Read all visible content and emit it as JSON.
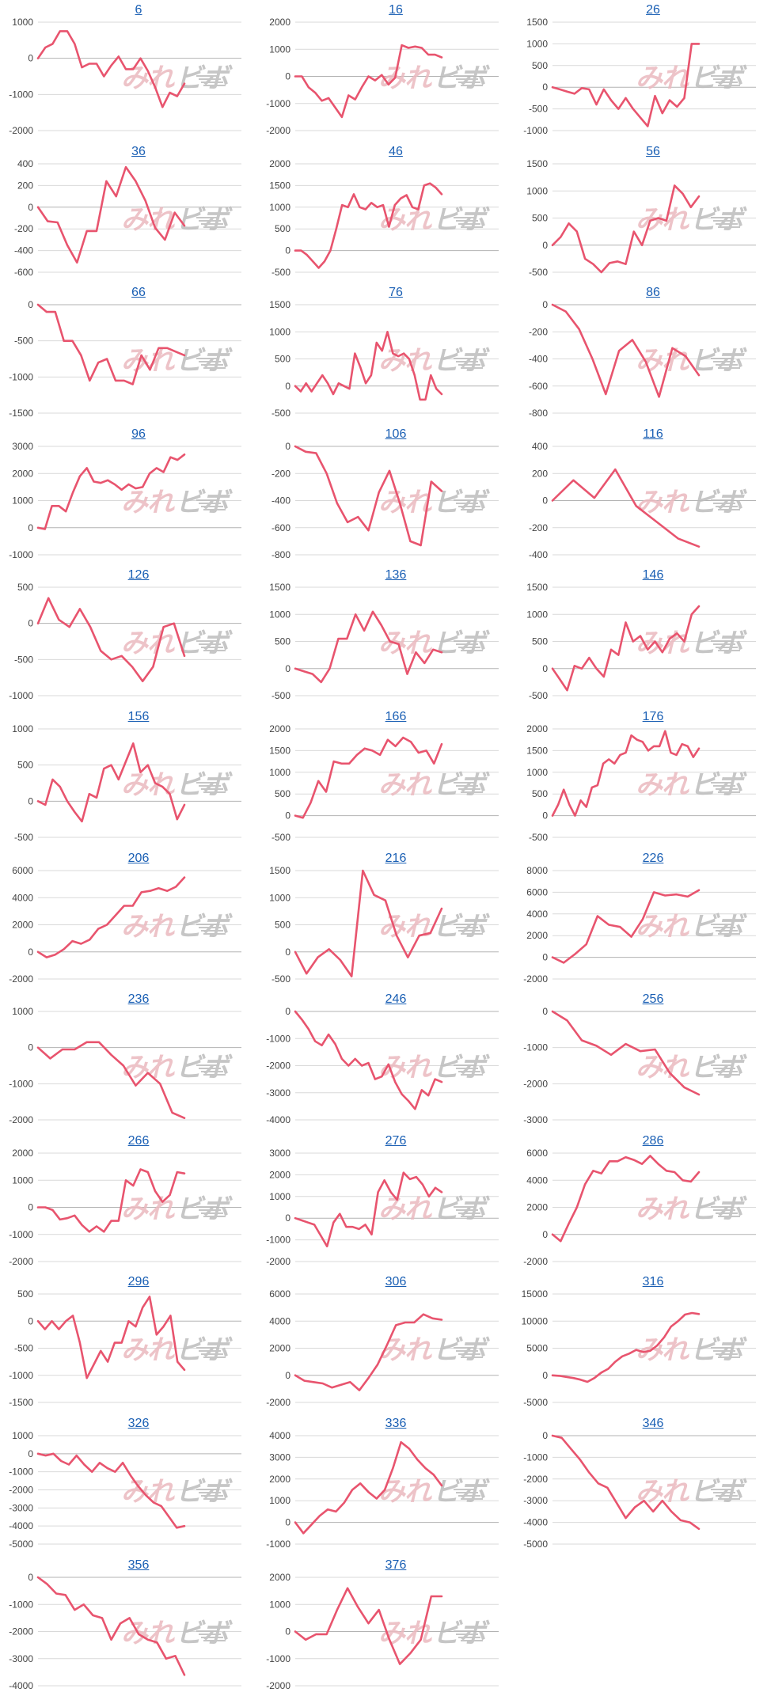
{
  "line_color": "#e8546e",
  "grid_color": "#d9d9d9",
  "zero_line_color": "#b3b3b3",
  "link_color": "#1a5fb4",
  "watermark_fill": "#ebb9bf",
  "watermark_fill_2": "#bdbdbd",
  "chart_data": [
    {
      "type": "line",
      "title": "6",
      "yticks": [
        1000,
        0,
        -1000,
        -2000
      ],
      "ylim": [
        -2000,
        1000
      ],
      "values": [
        0,
        300,
        400,
        750,
        750,
        400,
        -250,
        -150,
        -150,
        -500,
        -200,
        50,
        -300,
        -300,
        0,
        -350,
        -800,
        -1350,
        -950,
        -1050,
        -700
      ]
    },
    {
      "type": "line",
      "title": "16",
      "yticks": [
        2000,
        1000,
        0,
        -1000,
        -2000
      ],
      "ylim": [
        -2000,
        2000
      ],
      "values": [
        0,
        0,
        -400,
        -600,
        -900,
        -800,
        -1150,
        -1500,
        -700,
        -850,
        -400,
        0,
        -150,
        50,
        -300,
        -50,
        1150,
        1050,
        1100,
        1050,
        800,
        800,
        700
      ]
    },
    {
      "type": "line",
      "title": "26",
      "yticks": [
        1500,
        1000,
        500,
        0,
        -500,
        -1000
      ],
      "ylim": [
        -1000,
        1500
      ],
      "values": [
        0,
        -50,
        -100,
        -150,
        -20,
        -50,
        -400,
        -50,
        -300,
        -500,
        -250,
        -500,
        -700,
        -900,
        -200,
        -600,
        -300,
        -450,
        -250,
        1000,
        1000
      ]
    },
    {
      "type": "line",
      "title": "36",
      "yticks": [
        400,
        200,
        0,
        -200,
        -400,
        -600
      ],
      "ylim": [
        -600,
        400
      ],
      "values": [
        0,
        -130,
        -140,
        -350,
        -510,
        -220,
        -220,
        240,
        100,
        370,
        240,
        60,
        -190,
        -300,
        -50,
        -170
      ]
    },
    {
      "type": "line",
      "title": "46",
      "yticks": [
        2000,
        1500,
        1000,
        500,
        0,
        -500
      ],
      "ylim": [
        -500,
        2000
      ],
      "values": [
        0,
        0,
        -100,
        -250,
        -400,
        -250,
        0,
        500,
        1050,
        1000,
        1300,
        1000,
        950,
        1100,
        1000,
        1050,
        550,
        1050,
        1200,
        1280,
        1000,
        950,
        1500,
        1550,
        1450,
        1300
      ]
    },
    {
      "type": "line",
      "title": "56",
      "yticks": [
        1500,
        1000,
        500,
        0,
        -500
      ],
      "ylim": [
        -500,
        1500
      ],
      "values": [
        0,
        150,
        400,
        250,
        -250,
        -350,
        -500,
        -330,
        -300,
        -350,
        250,
        0,
        450,
        500,
        450,
        1100,
        950,
        700,
        900
      ]
    },
    {
      "type": "line",
      "title": "66",
      "yticks": [
        0,
        -500,
        -1000,
        -1500
      ],
      "ylim": [
        -1500,
        0
      ],
      "values": [
        0,
        -100,
        -100,
        -500,
        -500,
        -700,
        -1050,
        -800,
        -750,
        -1050,
        -1050,
        -1100,
        -700,
        -900,
        -600,
        -600,
        -650,
        -700
      ]
    },
    {
      "type": "line",
      "title": "76",
      "yticks": [
        1500,
        1000,
        500,
        0,
        -500
      ],
      "ylim": [
        -500,
        1500
      ],
      "values": [
        0,
        -100,
        50,
        -100,
        50,
        200,
        50,
        -150,
        50,
        0,
        -50,
        600,
        350,
        50,
        200,
        800,
        650,
        1000,
        600,
        550,
        600,
        500,
        200,
        -250,
        -250,
        200,
        -50,
        -150
      ]
    },
    {
      "type": "line",
      "title": "86",
      "yticks": [
        0,
        -200,
        -400,
        -600,
        -800
      ],
      "ylim": [
        -800,
        0
      ],
      "values": [
        0,
        -50,
        -180,
        -400,
        -660,
        -340,
        -260,
        -420,
        -680,
        -320,
        -380,
        -520
      ]
    },
    {
      "type": "line",
      "title": "96",
      "yticks": [
        3000,
        2000,
        1000,
        0,
        -1000
      ],
      "ylim": [
        -1000,
        3000
      ],
      "values": [
        0,
        -50,
        800,
        800,
        600,
        1300,
        1900,
        2200,
        1700,
        1650,
        1750,
        1600,
        1400,
        1600,
        1450,
        1500,
        2000,
        2200,
        2050,
        2600,
        2500,
        2700
      ]
    },
    {
      "type": "line",
      "title": "106",
      "yticks": [
        0,
        -200,
        -400,
        -600,
        -800
      ],
      "ylim": [
        -800,
        0
      ],
      "values": [
        0,
        -40,
        -50,
        -200,
        -420,
        -560,
        -520,
        -620,
        -340,
        -180,
        -420,
        -700,
        -730,
        -260,
        -330
      ]
    },
    {
      "type": "line",
      "title": "116",
      "yticks": [
        400,
        200,
        0,
        -200,
        -400
      ],
      "ylim": [
        -400,
        400
      ],
      "values": [
        0,
        150,
        20,
        230,
        -40,
        -160,
        -280,
        -340
      ]
    },
    {
      "type": "line",
      "title": "126",
      "yticks": [
        500,
        0,
        -500,
        -1000
      ],
      "ylim": [
        -1000,
        500
      ],
      "values": [
        0,
        350,
        50,
        -50,
        200,
        -50,
        -380,
        -500,
        -450,
        -600,
        -800,
        -600,
        -50,
        0,
        -450
      ]
    },
    {
      "type": "line",
      "title": "136",
      "yticks": [
        1500,
        1000,
        500,
        0,
        -500
      ],
      "ylim": [
        -500,
        1500
      ],
      "values": [
        0,
        -50,
        -100,
        -250,
        0,
        550,
        550,
        1000,
        700,
        1050,
        800,
        500,
        450,
        -100,
        300,
        100,
        350,
        300
      ]
    },
    {
      "type": "line",
      "title": "146",
      "yticks": [
        1500,
        1000,
        500,
        0,
        -500
      ],
      "ylim": [
        -500,
        1500
      ],
      "values": [
        0,
        -200,
        -400,
        50,
        0,
        200,
        0,
        -150,
        350,
        250,
        850,
        500,
        600,
        350,
        500,
        300,
        550,
        650,
        500,
        1000,
        1150
      ]
    },
    {
      "type": "line",
      "title": "156",
      "yticks": [
        1000,
        500,
        0,
        -500
      ],
      "ylim": [
        -500,
        1000
      ],
      "values": [
        0,
        -50,
        300,
        200,
        0,
        -150,
        -280,
        100,
        50,
        450,
        500,
        300,
        550,
        800,
        400,
        500,
        250,
        200,
        100,
        -250,
        -50
      ]
    },
    {
      "type": "line",
      "title": "166",
      "yticks": [
        2000,
        1500,
        1000,
        500,
        0,
        -500
      ],
      "ylim": [
        -500,
        2000
      ],
      "values": [
        0,
        -50,
        300,
        800,
        550,
        1250,
        1200,
        1200,
        1400,
        1550,
        1500,
        1400,
        1750,
        1600,
        1800,
        1700,
        1450,
        1500,
        1200,
        1650
      ]
    },
    {
      "type": "line",
      "title": "176",
      "yticks": [
        2000,
        1500,
        1000,
        500,
        0,
        -500
      ],
      "ylim": [
        -500,
        2000
      ],
      "values": [
        0,
        250,
        600,
        250,
        0,
        350,
        200,
        650,
        700,
        1200,
        1300,
        1200,
        1400,
        1450,
        1850,
        1750,
        1700,
        1500,
        1600,
        1600,
        1950,
        1450,
        1400,
        1650,
        1600,
        1350,
        1550
      ]
    },
    {
      "type": "line",
      "title": "206",
      "yticks": [
        6000,
        4000,
        2000,
        0,
        -2000
      ],
      "ylim": [
        -2000,
        6000
      ],
      "values": [
        0,
        -400,
        -200,
        200,
        800,
        600,
        900,
        1700,
        2000,
        2700,
        3400,
        3400,
        4400,
        4500,
        4700,
        4500,
        4800,
        5500
      ]
    },
    {
      "type": "line",
      "title": "216",
      "yticks": [
        1500,
        1000,
        500,
        0,
        -500
      ],
      "ylim": [
        -500,
        1500
      ],
      "values": [
        0,
        -400,
        -100,
        50,
        -150,
        -450,
        1500,
        1050,
        950,
        300,
        -100,
        300,
        350,
        800
      ]
    },
    {
      "type": "line",
      "title": "226",
      "yticks": [
        8000,
        6000,
        4000,
        2000,
        0,
        -2000
      ],
      "ylim": [
        -2000,
        8000
      ],
      "values": [
        0,
        -500,
        300,
        1200,
        3800,
        3000,
        2800,
        1900,
        3500,
        6000,
        5700,
        5800,
        5600,
        6200
      ]
    },
    {
      "type": "line",
      "title": "236",
      "yticks": [
        1000,
        0,
        -1000,
        -2000
      ],
      "ylim": [
        -2000,
        1000
      ],
      "values": [
        0,
        -300,
        -50,
        -50,
        150,
        150,
        -200,
        -500,
        -1050,
        -700,
        -1000,
        -1800,
        -1950
      ]
    },
    {
      "type": "line",
      "title": "246",
      "yticks": [
        0,
        -1000,
        -2000,
        -3000,
        -4000
      ],
      "ylim": [
        -4000,
        0
      ],
      "values": [
        0,
        -300,
        -650,
        -1100,
        -1250,
        -850,
        -1200,
        -1750,
        -2000,
        -1750,
        -2000,
        -1900,
        -2500,
        -2400,
        -1950,
        -2600,
        -3050,
        -3300,
        -3600,
        -2900,
        -3100,
        -2500,
        -2600
      ]
    },
    {
      "type": "line",
      "title": "256",
      "yticks": [
        0,
        -1000,
        -2000,
        -3000
      ],
      "ylim": [
        -3000,
        0
      ],
      "values": [
        0,
        -250,
        -800,
        -950,
        -1200,
        -900,
        -1100,
        -1050,
        -1700,
        -2100,
        -2300
      ]
    },
    {
      "type": "line",
      "title": "266",
      "yticks": [
        2000,
        1000,
        0,
        -1000,
        -2000
      ],
      "ylim": [
        -2000,
        2000
      ],
      "values": [
        0,
        0,
        -100,
        -450,
        -400,
        -300,
        -650,
        -900,
        -700,
        -900,
        -500,
        -500,
        1000,
        800,
        1400,
        1300,
        600,
        200,
        450,
        1300,
        1250
      ]
    },
    {
      "type": "line",
      "title": "276",
      "yticks": [
        3000,
        2000,
        1000,
        0,
        -1000,
        -2000
      ],
      "ylim": [
        -2000,
        3000
      ],
      "values": [
        0,
        -100,
        -200,
        -300,
        -800,
        -1300,
        -200,
        200,
        -400,
        -400,
        -500,
        -300,
        -750,
        1200,
        1750,
        1200,
        850,
        2100,
        1800,
        1900,
        1550,
        1000,
        1400,
        1200
      ]
    },
    {
      "type": "line",
      "title": "286",
      "yticks": [
        6000,
        4000,
        2000,
        0,
        -2000
      ],
      "ylim": [
        -2000,
        6000
      ],
      "values": [
        0,
        -500,
        800,
        2000,
        3700,
        4700,
        4500,
        5400,
        5400,
        5700,
        5500,
        5200,
        5800,
        5200,
        4700,
        4600,
        4000,
        3900,
        4600
      ]
    },
    {
      "type": "line",
      "title": "296",
      "yticks": [
        500,
        0,
        -500,
        -1000,
        -1500
      ],
      "ylim": [
        -1500,
        500
      ],
      "values": [
        0,
        -150,
        0,
        -150,
        0,
        100,
        -400,
        -1050,
        -800,
        -550,
        -750,
        -400,
        -400,
        0,
        -100,
        250,
        450,
        -250,
        -100,
        100,
        -750,
        -900
      ]
    },
    {
      "type": "line",
      "title": "306",
      "yticks": [
        6000,
        4000,
        2000,
        0,
        -2000
      ],
      "ylim": [
        -2000,
        6000
      ],
      "values": [
        0,
        -400,
        -500,
        -600,
        -900,
        -700,
        -500,
        -1100,
        -200,
        800,
        2200,
        3700,
        3900,
        3900,
        4500,
        4200,
        4100
      ]
    },
    {
      "type": "line",
      "title": "316",
      "yticks": [
        15000,
        10000,
        5000,
        0,
        -5000
      ],
      "ylim": [
        -5000,
        15000
      ],
      "values": [
        0,
        -100,
        -300,
        -500,
        -800,
        -1200,
        -500,
        500,
        1200,
        2500,
        3500,
        4000,
        4700,
        4300,
        4500,
        5500,
        7000,
        9000,
        10000,
        11200,
        11500,
        11300
      ]
    },
    {
      "type": "line",
      "title": "326",
      "yticks": [
        1000,
        0,
        -1000,
        -2000,
        -3000,
        -4000,
        -5000
      ],
      "ylim": [
        -5000,
        1000
      ],
      "values": [
        0,
        -100,
        0,
        -400,
        -600,
        -100,
        -600,
        -1000,
        -500,
        -800,
        -1000,
        -500,
        -1200,
        -1800,
        -2300,
        -2700,
        -2900,
        -3500,
        -4100,
        -4000
      ]
    },
    {
      "type": "line",
      "title": "336",
      "yticks": [
        4000,
        3000,
        2000,
        1000,
        0,
        -1000
      ],
      "ylim": [
        -1000,
        4000
      ],
      "values": [
        0,
        -500,
        -100,
        300,
        600,
        500,
        900,
        1500,
        1800,
        1400,
        1100,
        1500,
        2500,
        3700,
        3400,
        2900,
        2500,
        2200,
        1700
      ]
    },
    {
      "type": "line",
      "title": "346",
      "yticks": [
        0,
        -1000,
        -2000,
        -3000,
        -4000,
        -5000
      ],
      "ylim": [
        -5000,
        0
      ],
      "values": [
        0,
        -100,
        -600,
        -1100,
        -1700,
        -2200,
        -2400,
        -3100,
        -3800,
        -3300,
        -3000,
        -3500,
        -3000,
        -3500,
        -3900,
        -4000,
        -4300
      ]
    },
    {
      "type": "line",
      "title": "356",
      "yticks": [
        0,
        -1000,
        -2000,
        -3000,
        -4000
      ],
      "ylim": [
        -4000,
        0
      ],
      "values": [
        0,
        -250,
        -600,
        -650,
        -1200,
        -1000,
        -1400,
        -1500,
        -2300,
        -1700,
        -1500,
        -2100,
        -2300,
        -2400,
        -3000,
        -2900,
        -3600
      ]
    },
    {
      "type": "line",
      "title": "376",
      "yticks": [
        2000,
        1000,
        0,
        -1000,
        -2000
      ],
      "ylim": [
        -2000,
        2000
      ],
      "values": [
        0,
        -300,
        -100,
        -100,
        800,
        1600,
        900,
        300,
        800,
        -300,
        -1200,
        -800,
        -300,
        1300,
        1300
      ]
    }
  ]
}
